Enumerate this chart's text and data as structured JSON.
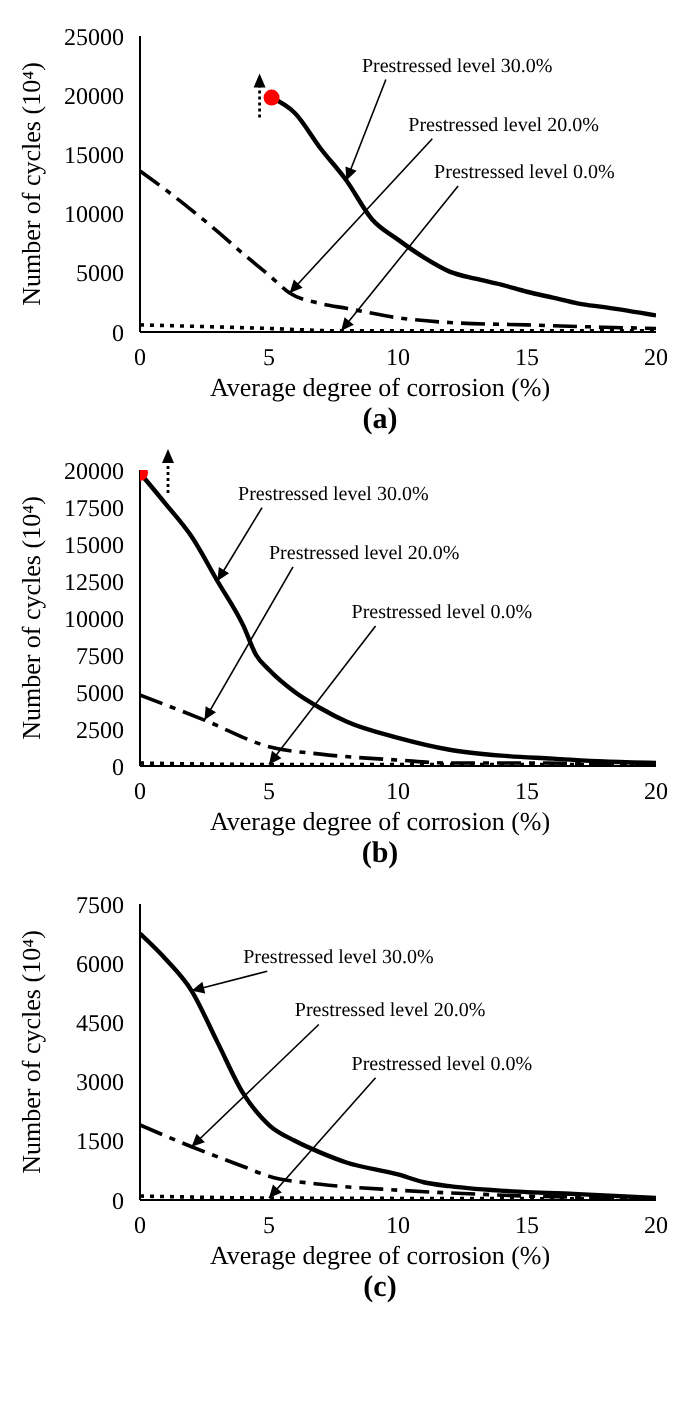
{
  "chart_data": [
    {
      "type": "line",
      "xlabel": "Average degree of corrosion (%)",
      "ylabel": "Number of cycles (10⁴)",
      "annotations": [
        "(a)"
      ],
      "xlim": [
        0,
        20
      ],
      "xticks": [
        0,
        5,
        10,
        15,
        20
      ],
      "ylim": [
        0,
        25000
      ],
      "yticks": [
        0,
        5000,
        10000,
        15000,
        20000,
        25000
      ],
      "marker": "none",
      "series": [
        {
          "name": "Prestressed level 30.0%",
          "color": "#000000",
          "line_style": "solid",
          "x": [
            5.1,
            6,
            7,
            8,
            9,
            10,
            11,
            12,
            13,
            14,
            15,
            16,
            17,
            18,
            20
          ],
          "values": [
            19800,
            18500,
            15500,
            12800,
            9500,
            7800,
            6300,
            5100,
            4500,
            4000,
            3400,
            2900,
            2400,
            2100,
            1400
          ]
        },
        {
          "name": "Prestressed level 20.0%",
          "color": "#000000",
          "line_style": "dashed",
          "x": [
            0,
            1,
            2,
            3,
            4,
            5,
            5.8,
            7,
            8,
            10,
            12,
            15,
            18,
            20
          ],
          "values": [
            13600,
            12000,
            10300,
            8500,
            6600,
            4800,
            3300,
            2400,
            2000,
            1200,
            800,
            600,
            400,
            300
          ]
        },
        {
          "name": "Prestressed level 0.0%",
          "color": "#000000",
          "line_style": "dotted",
          "x": [
            0,
            5,
            7.8,
            10,
            15,
            20
          ],
          "values": [
            600,
            300,
            100,
            100,
            100,
            100
          ]
        },
        {
          "type": "scatter",
          "color": "#ff0000",
          "marker": "circle",
          "x": [
            5.1
          ],
          "values": [
            19800
          ]
        }
      ]
    },
    {
      "type": "line",
      "xlabel": "Average degree of corrosion (%)",
      "ylabel": "Number of cycles (10⁴)",
      "annotations": [
        "(b)"
      ],
      "xlim": [
        0,
        20
      ],
      "xticks": [
        0,
        5,
        10,
        15,
        20
      ],
      "ylim": [
        0,
        20000
      ],
      "yticks": [
        0,
        2500,
        5000,
        7500,
        10000,
        12500,
        15000,
        17500,
        20000
      ],
      "marker": "none",
      "series": [
        {
          "name": "Prestressed level 30.0%",
          "color": "#000000",
          "line_style": "solid",
          "x": [
            0,
            1,
            2,
            3,
            4,
            4.5,
            5,
            6,
            7,
            8,
            10,
            12,
            14,
            16,
            18,
            20
          ],
          "values": [
            19800,
            17700,
            15500,
            12500,
            9500,
            7500,
            6500,
            5000,
            3900,
            3000,
            1900,
            1100,
            700,
            500,
            300,
            200
          ]
        },
        {
          "name": "Prestressed level 20.0%",
          "color": "#000000",
          "line_style": "dashed",
          "x": [
            0,
            2.5,
            5,
            7,
            10,
            12,
            15,
            20
          ],
          "values": [
            4800,
            3100,
            1300,
            800,
            400,
            200,
            200,
            100
          ]
        },
        {
          "name": "Prestressed level 0.0%",
          "color": "#000000",
          "line_style": "dotted",
          "x": [
            0,
            5,
            10,
            20
          ],
          "values": [
            200,
            100,
            100,
            100
          ]
        },
        {
          "type": "scatter",
          "color": "#ff0000",
          "marker": "circle",
          "x": [
            0
          ],
          "values": [
            19800
          ]
        }
      ]
    },
    {
      "type": "line",
      "xlabel": "Average degree of corrosion (%)",
      "ylabel": "Number of cycles (10⁴)",
      "annotations": [
        "(c)"
      ],
      "xlim": [
        0,
        20
      ],
      "xticks": [
        0,
        5,
        10,
        15,
        20
      ],
      "ylim": [
        0,
        7500
      ],
      "yticks": [
        0,
        1500,
        3000,
        4500,
        6000,
        7500
      ],
      "marker": "none",
      "series": [
        {
          "name": "Prestressed level 30.0%",
          "color": "#000000",
          "line_style": "solid",
          "x": [
            0,
            1,
            2,
            3,
            4,
            5,
            6,
            7,
            8,
            10,
            11,
            12,
            15,
            17,
            20
          ],
          "values": [
            6750,
            6100,
            5300,
            4000,
            2700,
            1900,
            1500,
            1200,
            950,
            650,
            450,
            350,
            200,
            150,
            50
          ]
        },
        {
          "name": "Prestressed level 20.0%",
          "color": "#000000",
          "line_style": "dashed",
          "x": [
            0,
            2,
            4,
            5,
            7,
            10,
            13,
            15,
            20
          ],
          "values": [
            1900,
            1350,
            850,
            600,
            400,
            250,
            150,
            100,
            50
          ]
        },
        {
          "name": "Prestressed level 0.0%",
          "color": "#000000",
          "line_style": "dotted",
          "x": [
            0,
            5,
            20
          ],
          "values": [
            100,
            50,
            30
          ]
        }
      ]
    }
  ]
}
